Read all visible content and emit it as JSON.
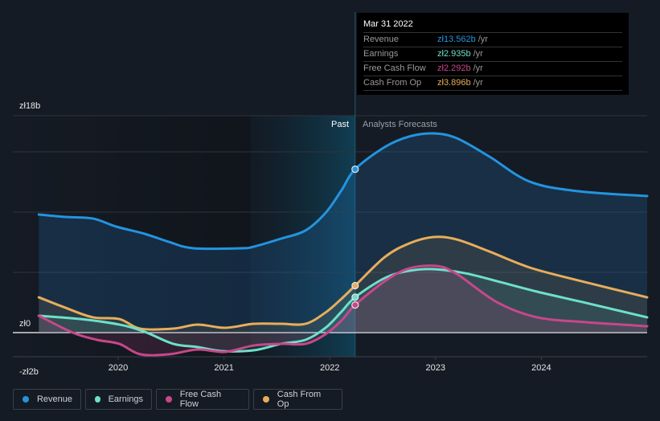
{
  "tooltip": {
    "date": "Mar 31 2022",
    "rows": [
      {
        "label": "Revenue",
        "value": "zł13.562b",
        "unit": "/yr",
        "color": "#2394df"
      },
      {
        "label": "Earnings",
        "value": "zł2.935b",
        "unit": "/yr",
        "color": "#6ee0c9"
      },
      {
        "label": "Free Cash Flow",
        "value": "zł2.292b",
        "unit": "/yr",
        "color": "#c8478a"
      },
      {
        "label": "Cash From Op",
        "value": "zł3.896b",
        "unit": "/yr",
        "color": "#e8ad5a"
      }
    ]
  },
  "period_labels": {
    "past": "Past",
    "forecast": "Analysts Forecasts"
  },
  "legend": [
    {
      "label": "Revenue",
      "color": "#2394df"
    },
    {
      "label": "Earnings",
      "color": "#6ee0c9"
    },
    {
      "label": "Free Cash Flow",
      "color": "#c8478a"
    },
    {
      "label": "Cash From Op",
      "color": "#e8ad5a"
    }
  ],
  "chart_data": {
    "type": "line",
    "title": "",
    "xlabel": "",
    "ylabel": "",
    "currency": "zł",
    "unit": "b",
    "ylim": [
      -2,
      18
    ],
    "xlim": [
      2019.25,
      2025.0
    ],
    "y_tick_labels": [
      {
        "value": 18,
        "label": "zł18b"
      },
      {
        "value": 0,
        "label": "zł0"
      },
      {
        "value": -2,
        "label": "-zł2b"
      }
    ],
    "y_gridlines": [
      18,
      15,
      10,
      5,
      0,
      -2
    ],
    "x_ticks": [
      {
        "value": 2020,
        "label": "2020"
      },
      {
        "value": 2021,
        "label": "2021"
      },
      {
        "value": 2022,
        "label": "2022"
      },
      {
        "value": 2023,
        "label": "2023"
      },
      {
        "value": 2024,
        "label": "2024"
      }
    ],
    "past_highlight_start": 2021.25,
    "forecast_start": 2022.24,
    "grid": true,
    "legend_position": "bottom-left",
    "series": [
      {
        "name": "Revenue",
        "color": "#2394df",
        "points": [
          [
            2019.25,
            9.8
          ],
          [
            2019.5,
            9.6
          ],
          [
            2019.76,
            9.47
          ],
          [
            2019.98,
            8.8
          ],
          [
            2020.25,
            8.2
          ],
          [
            2020.48,
            7.53
          ],
          [
            2020.71,
            7.0
          ],
          [
            2021.16,
            7.0
          ],
          [
            2021.28,
            7.13
          ],
          [
            2021.54,
            7.8
          ],
          [
            2021.77,
            8.47
          ],
          [
            2021.96,
            9.93
          ],
          [
            2022.11,
            11.8
          ],
          [
            2022.24,
            13.56
          ],
          [
            2022.52,
            15.4
          ],
          [
            2022.75,
            16.27
          ],
          [
            2022.98,
            16.53
          ],
          [
            2023.2,
            16.13
          ],
          [
            2023.51,
            14.6
          ],
          [
            2023.89,
            12.53
          ],
          [
            2024.35,
            11.73
          ],
          [
            2025.0,
            11.33
          ]
        ]
      },
      {
        "name": "Earnings",
        "color": "#6ee0c9",
        "points": [
          [
            2019.25,
            1.4
          ],
          [
            2019.64,
            1.13
          ],
          [
            2020.01,
            0.67
          ],
          [
            2020.25,
            0.07
          ],
          [
            2020.52,
            -0.93
          ],
          [
            2020.75,
            -1.2
          ],
          [
            2020.98,
            -1.53
          ],
          [
            2021.28,
            -1.47
          ],
          [
            2021.54,
            -0.93
          ],
          [
            2021.77,
            -0.6
          ],
          [
            2021.96,
            0.4
          ],
          [
            2022.11,
            1.73
          ],
          [
            2022.24,
            2.94
          ],
          [
            2022.52,
            4.53
          ],
          [
            2022.75,
            5.13
          ],
          [
            2022.98,
            5.27
          ],
          [
            2023.28,
            4.93
          ],
          [
            2023.58,
            4.27
          ],
          [
            2023.96,
            3.4
          ],
          [
            2024.42,
            2.47
          ],
          [
            2025.0,
            1.27
          ]
        ]
      },
      {
        "name": "Free Cash Flow",
        "color": "#c8478a",
        "points": [
          [
            2019.25,
            1.4
          ],
          [
            2019.57,
            0.0
          ],
          [
            2019.8,
            -0.6
          ],
          [
            2020.01,
            -0.93
          ],
          [
            2020.21,
            -1.8
          ],
          [
            2020.48,
            -1.8
          ],
          [
            2020.75,
            -1.4
          ],
          [
            2021.01,
            -1.6
          ],
          [
            2021.28,
            -1.07
          ],
          [
            2021.54,
            -0.93
          ],
          [
            2021.77,
            -0.93
          ],
          [
            2021.96,
            -0.13
          ],
          [
            2022.11,
            1.0
          ],
          [
            2022.24,
            2.29
          ],
          [
            2022.52,
            4.27
          ],
          [
            2022.75,
            5.33
          ],
          [
            2023.01,
            5.53
          ],
          [
            2023.2,
            4.87
          ],
          [
            2023.58,
            2.53
          ],
          [
            2023.96,
            1.27
          ],
          [
            2024.42,
            0.87
          ],
          [
            2025.0,
            0.53
          ]
        ]
      },
      {
        "name": "Cash From Op",
        "color": "#e8ad5a",
        "points": [
          [
            2019.25,
            2.93
          ],
          [
            2019.5,
            2.07
          ],
          [
            2019.76,
            1.27
          ],
          [
            2020.01,
            1.13
          ],
          [
            2020.21,
            0.33
          ],
          [
            2020.52,
            0.33
          ],
          [
            2020.75,
            0.67
          ],
          [
            2021.01,
            0.4
          ],
          [
            2021.28,
            0.73
          ],
          [
            2021.54,
            0.73
          ],
          [
            2021.77,
            0.73
          ],
          [
            2021.96,
            1.67
          ],
          [
            2022.11,
            2.8
          ],
          [
            2022.24,
            3.9
          ],
          [
            2022.52,
            6.27
          ],
          [
            2022.75,
            7.4
          ],
          [
            2022.98,
            7.93
          ],
          [
            2023.2,
            7.73
          ],
          [
            2023.51,
            6.73
          ],
          [
            2023.89,
            5.4
          ],
          [
            2024.35,
            4.33
          ],
          [
            2025.0,
            2.93
          ]
        ]
      }
    ]
  }
}
